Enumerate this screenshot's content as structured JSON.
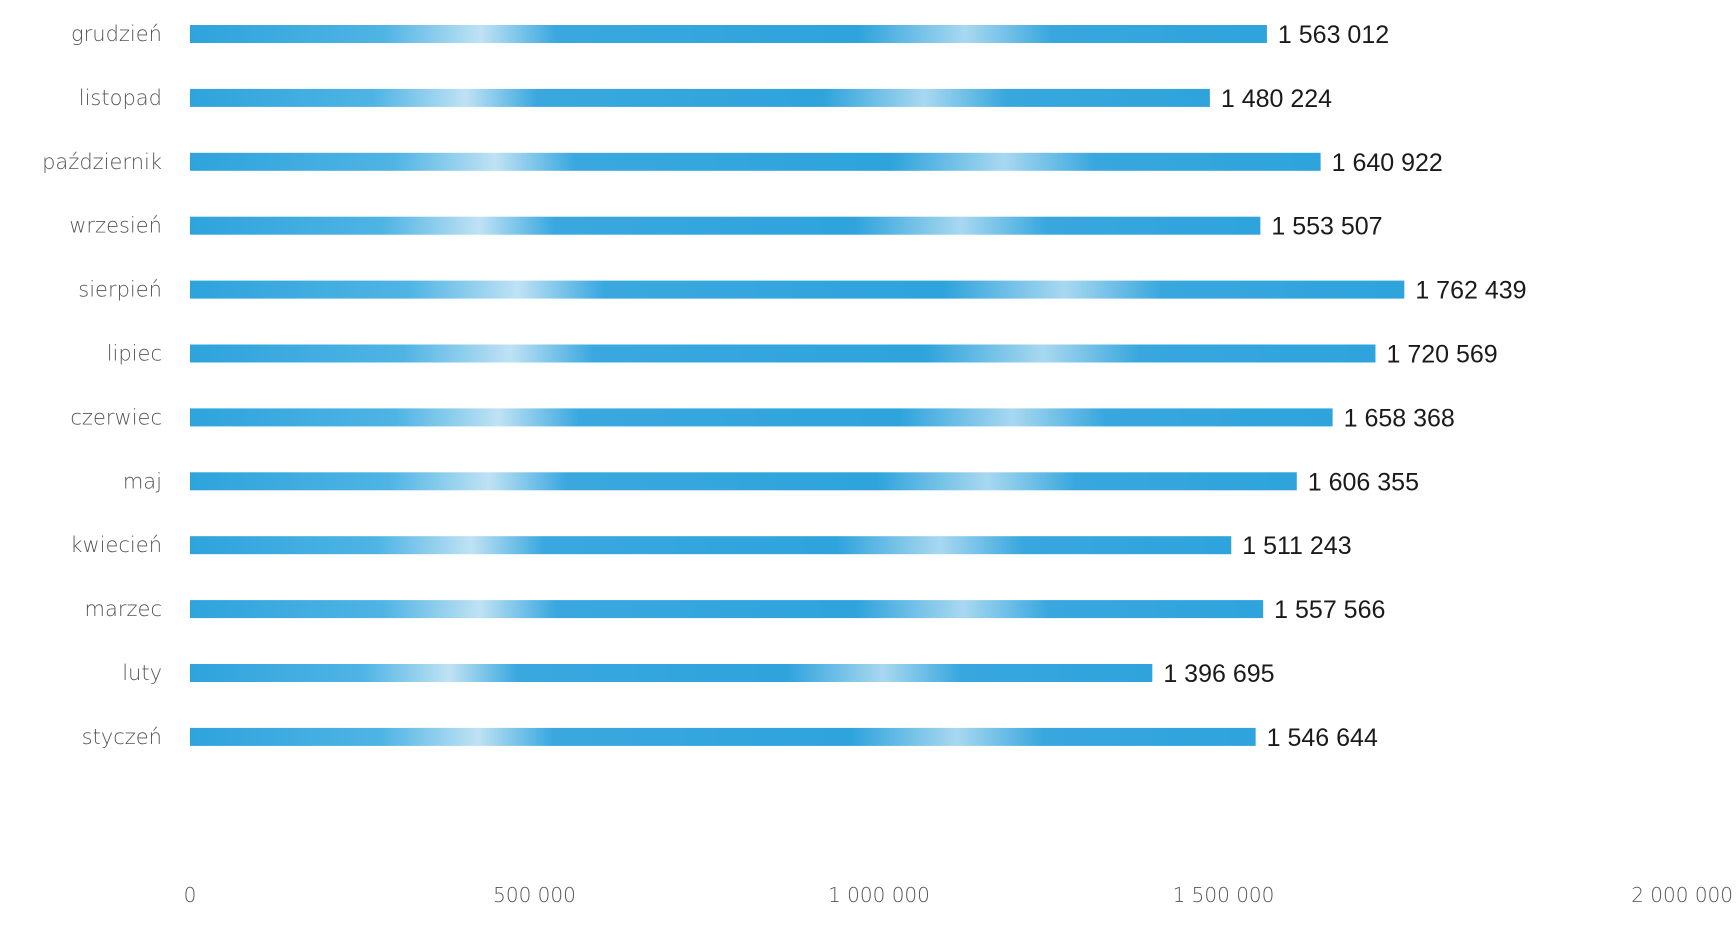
{
  "chart_data": {
    "type": "bar",
    "orientation": "horizontal",
    "categories": [
      "grudzień",
      "listopad",
      "październik",
      "wrzesień",
      "sierpień",
      "lipiec",
      "czerwiec",
      "maj",
      "kwiecień",
      "marzec",
      "luty",
      "styczeń"
    ],
    "values": [
      1563012,
      1480224,
      1640922,
      1553507,
      1762439,
      1720569,
      1658368,
      1606355,
      1511243,
      1557566,
      1396695,
      1546644
    ],
    "value_labels": [
      "1 563 012",
      "1 480 224",
      "1 640 922",
      "1 553 507",
      "1 762 439",
      "1 720 569",
      "1 658 368",
      "1 606 355",
      "1 511 243",
      "1 557 566",
      "1 396 695",
      "1 546 644"
    ],
    "xticks": [
      0,
      500000,
      1000000,
      1500000,
      2000000
    ],
    "xtick_labels": [
      "0",
      "500 000",
      "1 000 000",
      "1 500 000",
      "2 000 000"
    ],
    "xlim": [
      0,
      2000000
    ],
    "grid": false,
    "legend": "none",
    "bar_color": "#2ea3dc"
  }
}
